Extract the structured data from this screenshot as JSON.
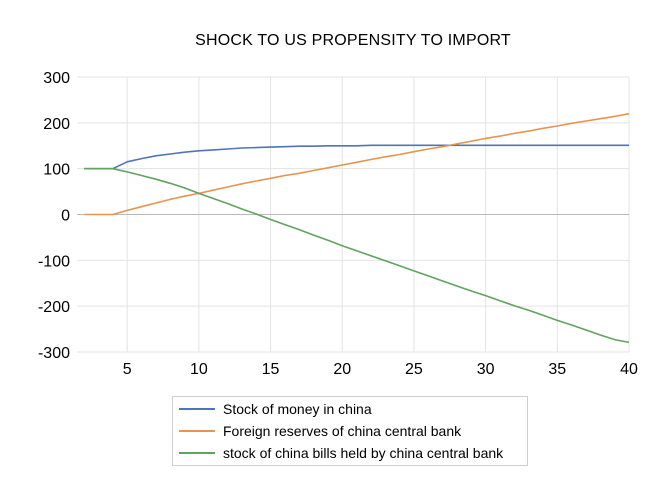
{
  "chart_data": {
    "type": "line",
    "title": "SHOCK TO US PROPENSITY TO IMPORT",
    "xlabel": "",
    "ylabel": "",
    "xlim": [
      1.5,
      40
    ],
    "ylim": [
      -300,
      300
    ],
    "xticks": [
      5,
      10,
      15,
      20,
      25,
      30,
      35,
      40
    ],
    "yticks": [
      300,
      200,
      100,
      0,
      -100,
      -200,
      -300
    ],
    "grid": true,
    "legend_position": "bottom",
    "x": [
      2,
      3,
      4,
      5,
      6,
      7,
      8,
      9,
      10,
      11,
      12,
      13,
      14,
      15,
      16,
      17,
      18,
      19,
      20,
      21,
      22,
      23,
      24,
      25,
      26,
      27,
      28,
      29,
      30,
      31,
      32,
      33,
      34,
      35,
      36,
      37,
      38,
      39,
      40
    ],
    "series": [
      {
        "name": "Stock of money in china",
        "color": "#4f74b8",
        "values": [
          100,
          100,
          100,
          115,
          122,
          128,
          132,
          136,
          139,
          141,
          143,
          145,
          146,
          147,
          148,
          149,
          149,
          150,
          150,
          150,
          151,
          151,
          151,
          151,
          151,
          151,
          151,
          151,
          151,
          151,
          151,
          151,
          151,
          151,
          151,
          151,
          151,
          151,
          151
        ]
      },
      {
        "name": "Foreign reserves of china central bank",
        "color": "#e8944f",
        "values": [
          0,
          0,
          0,
          9,
          17,
          25,
          33,
          40,
          46,
          53,
          60,
          67,
          73,
          79,
          85,
          90,
          96,
          102,
          108,
          114,
          120,
          126,
          131,
          137,
          143,
          148,
          154,
          160,
          166,
          171,
          177,
          182,
          188,
          193,
          199,
          204,
          209,
          214,
          220
        ]
      },
      {
        "name": "stock of china bills held by china central bank",
        "color": "#5fa35f",
        "values": [
          100,
          100,
          100,
          93,
          85,
          77,
          68,
          58,
          46,
          35,
          24,
          12,
          1,
          -11,
          -22,
          -33,
          -45,
          -56,
          -68,
          -79,
          -90,
          -101,
          -112,
          -123,
          -134,
          -145,
          -156,
          -167,
          -177,
          -188,
          -199,
          -209,
          -220,
          -231,
          -241,
          -252,
          -263,
          -273,
          -279
        ]
      }
    ]
  }
}
